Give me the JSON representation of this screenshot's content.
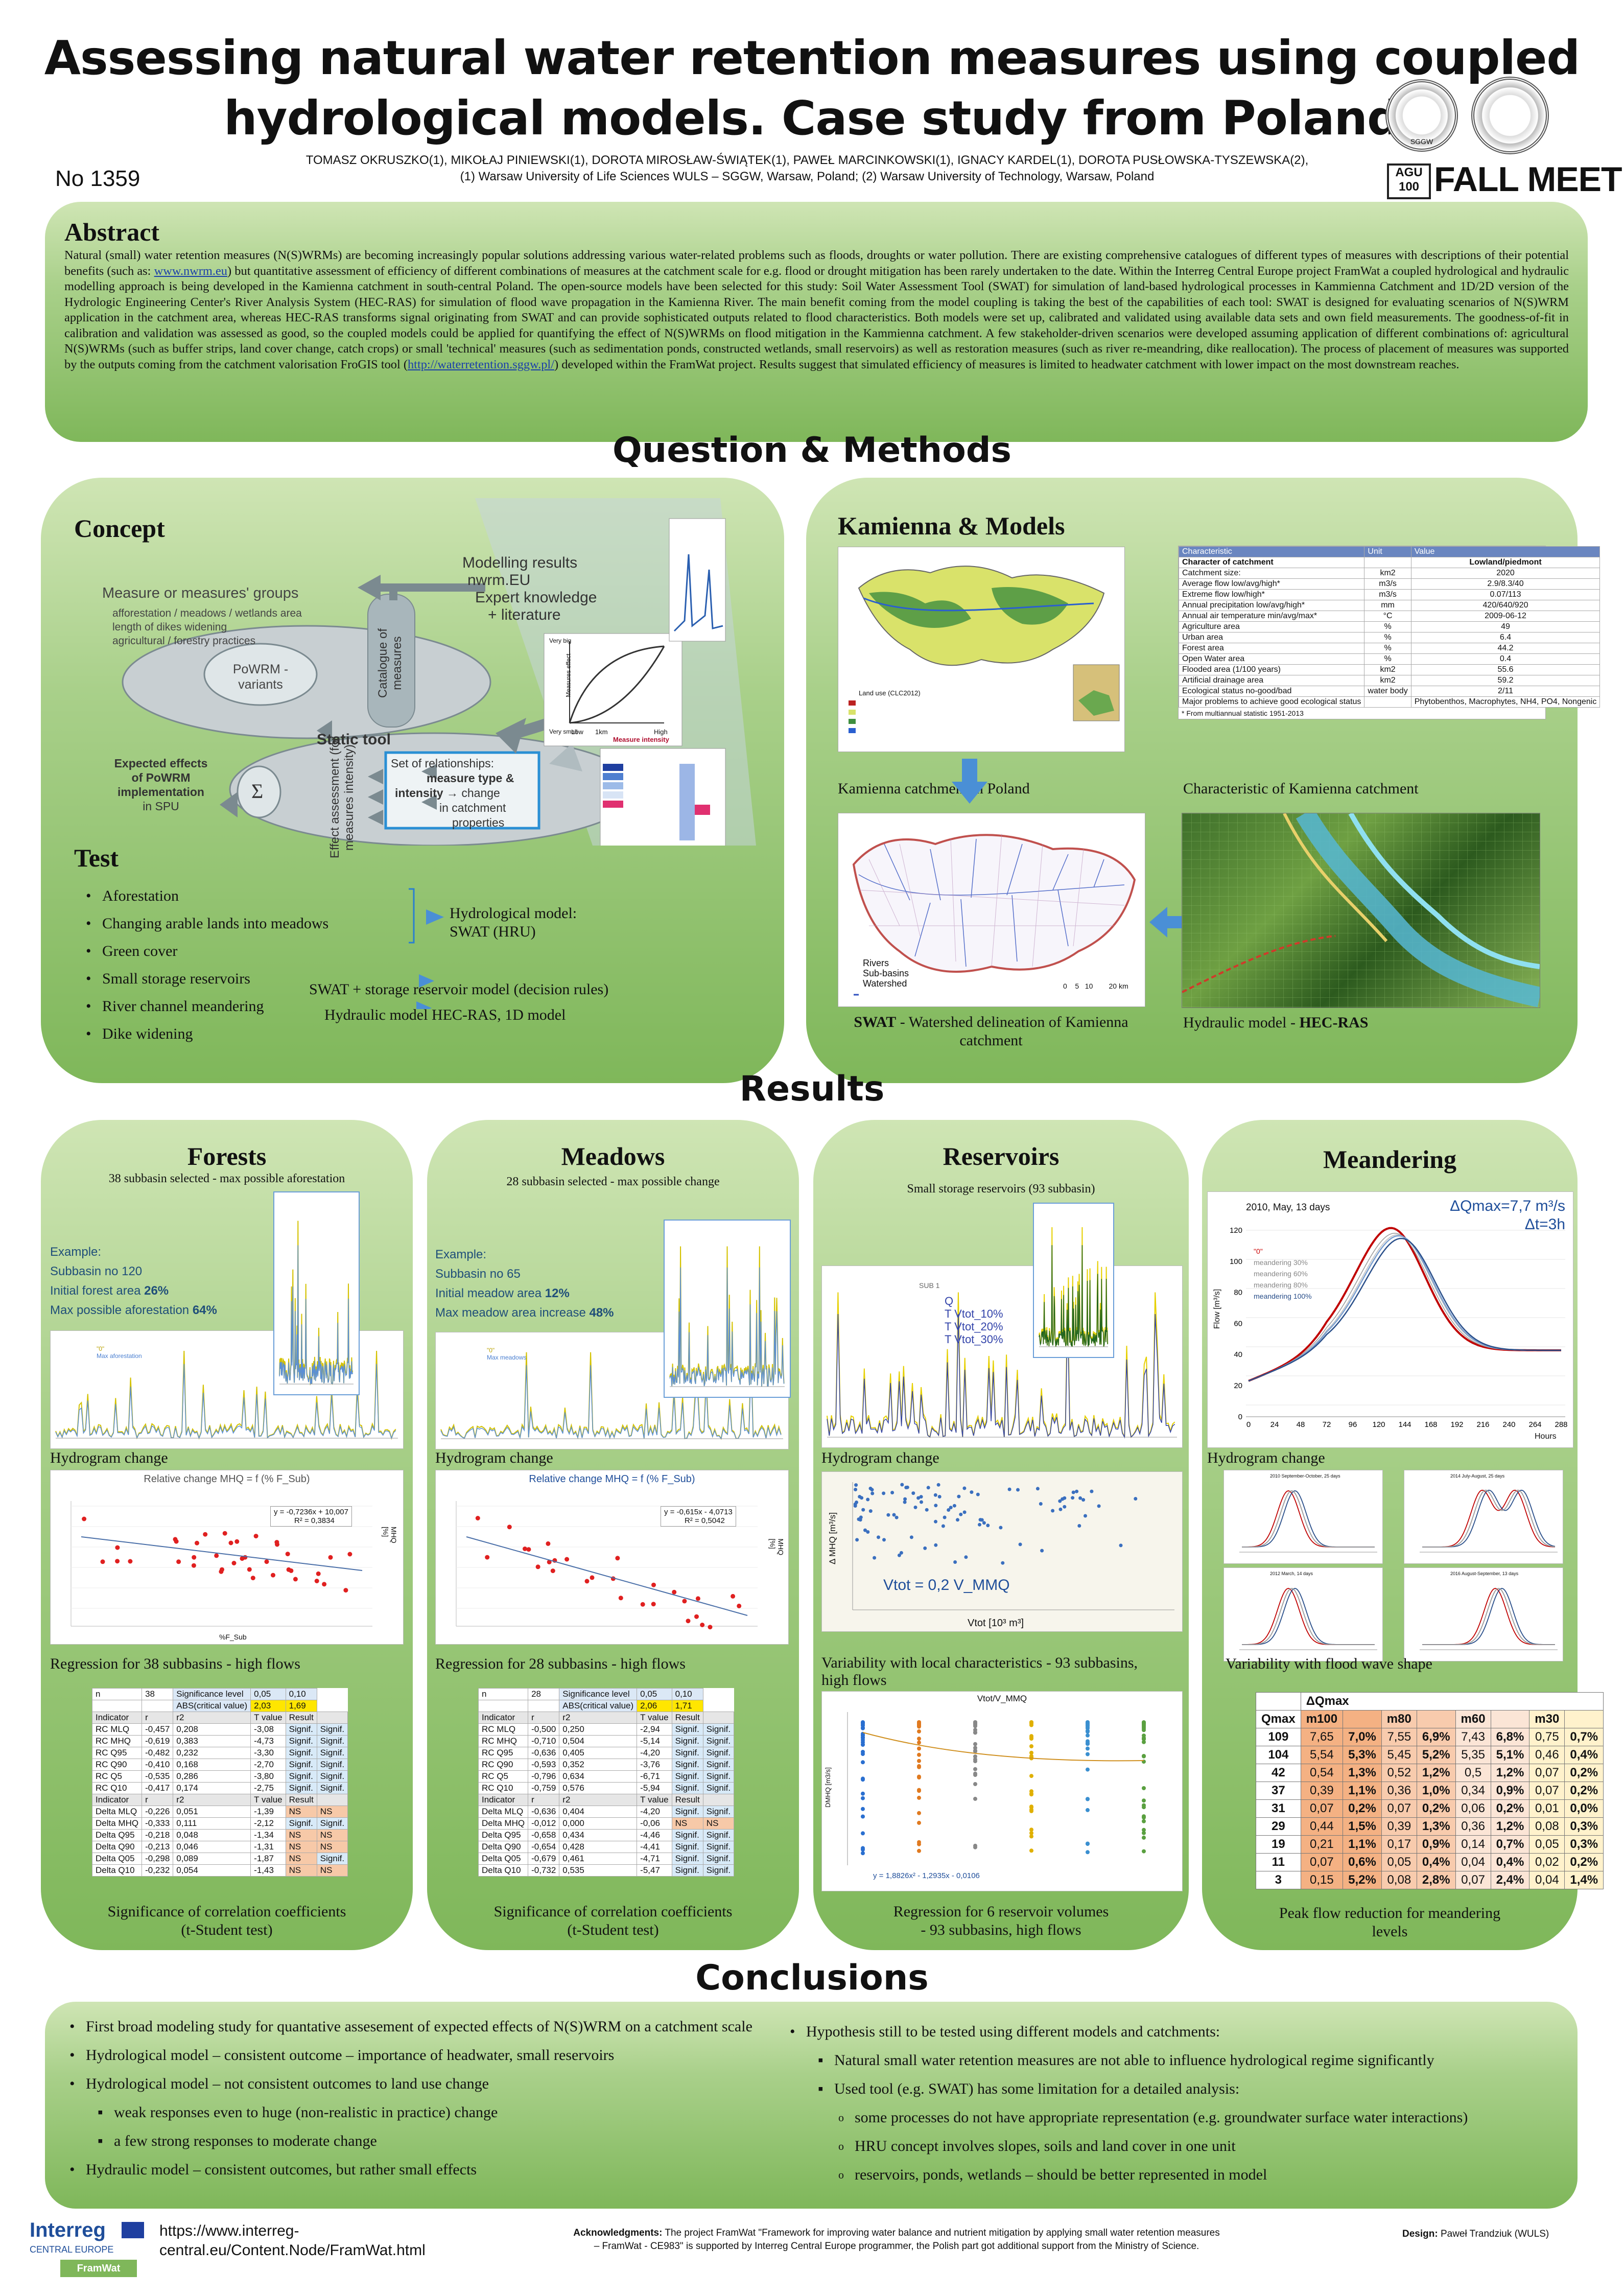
{
  "header": {
    "title_line1": "Assessing natural water retention measures using coupled",
    "title_line2": "hydrological models. Case study from Poland",
    "authors_line1": "TOMASZ OKRUSZKO(1), MIKOŁAJ PINIEWSKI(1), DOROTA MIROSŁAW-ŚWIĄTEK(1), PAWEŁ MARCINKOWSKI(1), IGNACY KARDEL(1), DOROTA PUSŁOWSKA-TYSZEWSKA(2),",
    "authors_line2": "(1) Warsaw University of Life Sciences WULS – SGGW, Warsaw, Poland; (2) Warsaw University of Technology, Warsaw, Poland",
    "poster_no": "No 1359",
    "seal_label": "SGGW",
    "agu_badge": "AGU 100",
    "fall_meeting": "FALL MEETING"
  },
  "abstract": {
    "heading": "Abstract",
    "text_a": "Natural (small) water retention measures (N(S)WRMs) are becoming increasingly popular solutions addressing various water-related problems such as floods, droughts or water pollution. There are existing comprehensive catalogues of different types of measures with descriptions of their potential benefits (such as: ",
    "link1": "www.nwrm.eu",
    "text_b": ") but quantitative assessment of efficiency of different combinations of measures at the catchment scale for e.g. flood or drought mitigation has been rarely undertaken to the date. Within the Interreg Central Europe project FramWat a coupled hydrological and hydraulic modelling approach is being developed in the Kamienna catchment in south-central Poland. The open-source models have been selected for this study: Soil Water Assessment Tool (SWAT) for simulation of land-based hydrological processes in Kammienna Catchment and 1D/2D version of the Hydrologic Engineering Center's River Analysis System (HEC-RAS) for simulation of flood wave propagation in the Kamienna River. The main benefit coming from the model coupling is taking the best of the capabilities of each tool: SWAT is designed for evaluating scenarios of N(S)WRM application in the catchment area, whereas HEC-RAS transforms signal originating from SWAT and can provide sophisticated outputs related to flood characteristics. Both models were set up, calibrated and validated using available data sets and own field measurements. The goodness-of-fit in calibration and validation was assessed as good, so the coupled models could be applied for quantifying the effect of N(S)WRMs on flood mitigation in the Kammienna catchment. A few stakeholder-driven scenarios were developed assuming application of different combinations of: agricultural N(S)WRMs (such as buffer strips, land cover change, catch crops) or small 'technical' measures (such as sedimentation ponds, constructed wetlands, small reservoirs) as well as restoration measures (such as river re-meandring, dike reallocation). The process of placement of measures was supported by the outputs coming from the catchment valorisation FroGIS tool (",
    "link2": "http://waterretention.sggw.pl/",
    "text_c": ") developed within the FramWat project. Results suggest that simulated efficiency of measures is limited to headwater catchment with lower impact on the most downstream reaches."
  },
  "sections": {
    "methods": "Question & Methods",
    "results": "Results",
    "conclusions": "Conclusions"
  },
  "concept": {
    "heading": "Concept",
    "modelling_results": "Modelling results",
    "nwrm": "nwrm.EU",
    "expert": "Expert knowledge",
    "literature": "+ literature",
    "measure_groups": "Measure or measures' groups",
    "mg1": "afforestation / meadows / wetlands area",
    "mg2": "length of dikes widening",
    "mg3": "agricultural / forestry practices",
    "powrm": "PoWRM -",
    "variants": "variants",
    "catalogue": "Catalogue of measures",
    "static_tool": "Static tool",
    "effect": "Effect assessment (for measures intensity)",
    "rel1": "Set of relationships:",
    "rel2": "measure type &",
    "rel3": "intensity",
    "rel4": "→ change",
    "rel5": "in catchment",
    "rel6": "properties",
    "expected1": "Expected effects",
    "expected2": "of PoWRM",
    "expected3": "implementation",
    "expected4": "in SPU",
    "sigma": "Σ",
    "measure_intensity": "Measure intensity",
    "very_big": "Very big",
    "very_small": "Very small",
    "low": "Low",
    "high": "High",
    "measures_effect": "Measures effect",
    "km_label": "1km"
  },
  "test": {
    "heading": "Test",
    "items": [
      "Aforestation",
      "Changing arable lands into meadows",
      "Green cover",
      "Small storage reservoirs",
      "River channel meandering",
      "Dike widening"
    ],
    "hydro1": "Hydrological model:",
    "hydro2": "SWAT (HRU)",
    "swat_res": "SWAT + storage reservoir model (decision rules)",
    "hecras": "Hydraulic model HEC-RAS, 1D model"
  },
  "kamienna": {
    "heading": "Kamienna & Models",
    "caption_map": "Kamienna catchment in Poland",
    "caption_char": "Characteristic of Kamienna catchment",
    "caption_swat_b": "SWAT",
    "caption_swat": " - Watershed delineation of Kamienna catchment",
    "caption_hec_a": "Hydraulic model - ",
    "caption_hec_b": "HEC-RAS",
    "legend_rivers": "Rivers",
    "legend_subbasins": "Sub-basins",
    "legend_watershed": "Watershed",
    "scale": "0    5   10        20 km",
    "table_head": [
      "Characteristic",
      "Unit",
      "Value"
    ],
    "table_sub": [
      "Character of catchment",
      "",
      "Lowland/piedmont"
    ],
    "table_rows": [
      [
        "Catchment size:",
        "km2",
        "2020"
      ],
      [
        "Average flow low/avg/high*",
        "m3/s",
        "2.9/8.3/40"
      ],
      [
        "Extreme flow low/high*",
        "m3/s",
        "0.07/113"
      ],
      [
        "Annual precipitation low/avg/high*",
        "mm",
        "420/640/920"
      ],
      [
        "Annual air temperature min/avg/max*",
        "°C",
        "2009-06-12"
      ],
      [
        "Agriculture area",
        "%",
        "49"
      ],
      [
        "Urban area",
        "%",
        "6.4"
      ],
      [
        "Forest area",
        "%",
        "44.2"
      ],
      [
        "Open Water area",
        "%",
        "0.4"
      ],
      [
        "Flooded area (1/100 years)",
        "km2",
        "55.6"
      ],
      [
        "Artificial drainage area",
        "km2",
        "59.2"
      ],
      [
        "Ecological status no-good/bad",
        "water body",
        "2/11"
      ],
      [
        "Major problems to achieve good ecological status",
        "",
        "Phytobenthos, Macrophytes, NH4, PO4, Nongenic"
      ]
    ],
    "table_note": "* From multiannual statistic 1951-2013",
    "map_legend_title": "Land use (CLC2012)"
  },
  "forests": {
    "heading": "Forests",
    "sub": "38 subbasin selected - max possible aforestation",
    "ex1": "Example:",
    "ex2": "Subbasin no 120",
    "ex3a": "Initial forest area ",
    "ex3b": "26%",
    "ex4a": "Max possible aforestation ",
    "ex4b": "64%",
    "hydrograph": "Hydrogram change",
    "reg_title": "Relative change MHQ = f (% F_Sub)",
    "reg_eq1": "y = -0,7236x + 10,007",
    "reg_eq2": "R² = 0,3834",
    "reg_x": "%F_Sub",
    "reg_y": "MHQ [%]",
    "regression": "Regression  for 38 subbasins  - high flows",
    "sig1": "Significance of correlation coefficients",
    "sig2": "(t-Student test)",
    "legend_0": "\"0\"",
    "legend_max": "Max aforestation",
    "dates": [
      "01.01.2009",
      "01.01.2010",
      "01.01.2011",
      "01.01.2012",
      "31.12.2012"
    ]
  },
  "meadows": {
    "heading": "Meadows",
    "sub": "28 subbasin selected - max possible change",
    "ex1": "Example:",
    "ex2": "Subbasin no 65",
    "ex3a": "Initial meadow area ",
    "ex3b": "12%",
    "ex4a": "Max meadow area increase ",
    "ex4b": "48%",
    "hydrograph": "Hydrogram change",
    "reg_title": "Relative change MHQ = f (% F_Sub)",
    "reg_eq1": "y = -0,615x - 4,0713",
    "reg_eq2": "R² = 0,5042",
    "reg_y": "MHQ [%]",
    "regression": "Regression  for 28 subbasins  - high flows",
    "sig1": "Significance of correlation coefficients",
    "sig2": "(t-Student test)",
    "legend_0": "\"0\"",
    "legend_max": "Max meadows"
  },
  "reservoirs": {
    "heading": "Reservoirs",
    "sub": "Small storage reservoirs (93 subbasin)",
    "sub1": "SUB 1",
    "legend": [
      "Q",
      "T Vtot_10%",
      "T Vtot_20%",
      "T Vtot_30%"
    ],
    "hydrograph": "Hydrogram change",
    "vtot_eq": "Vtot = 0,2 V_MMQ",
    "x_label": "Vtot [10³ m³]",
    "y_label": "Δ MHQ [m³/s]",
    "variability1": "Variability with local characteristics - 93 subbasins,",
    "variability2": "high flows",
    "box_title": "Vtot/V_MMQ",
    "box_eq": "y = 1,8826x² - 1,2935x - 0,0106",
    "box_y": "DMHQ [m3/s]",
    "cap1": "Regression for 6 reservoir volumes",
    "cap2": "- 93 subbasins, high flows"
  },
  "meandering": {
    "heading": "Meandering",
    "chart_title": "2010, May, 13 days",
    "dq": "ΔQmax=7,7 m³/s",
    "dt": "Δt=3h",
    "y_label": "Flow [m³/s]",
    "x_label": "Hours",
    "legend": [
      "\"0\"",
      "meandering 30%",
      "meandering 60%",
      "meandering 80%",
      "meandering 100%"
    ],
    "hydrograph": "Hydrogram change",
    "variability": "Variability with flood wave shape",
    "cap1": "Peak flow reduction for meandering",
    "cap2": "levels",
    "small_titles": [
      "2010 September-October, 25 days",
      "2014 July-August, 25 days",
      "2012 March, 14 days",
      "2016 August-September, 13 days"
    ],
    "table_head": [
      "Qmax",
      "m100",
      "",
      "m80",
      "",
      "m60",
      "",
      "m30",
      ""
    ],
    "table_dq": "ΔQmax",
    "table_rows": [
      [
        "109",
        "7,65",
        "7,0%",
        "7,55",
        "6,9%",
        "7,43",
        "6,8%",
        "0,75",
        "0,7%"
      ],
      [
        "104",
        "5,54",
        "5,3%",
        "5,45",
        "5,2%",
        "5,35",
        "5,1%",
        "0,46",
        "0,4%"
      ],
      [
        "42",
        "0,54",
        "1,3%",
        "0,52",
        "1,2%",
        "0,5",
        "1,2%",
        "0,07",
        "0,2%"
      ],
      [
        "37",
        "0,39",
        "1,1%",
        "0,36",
        "1,0%",
        "0,34",
        "0,9%",
        "0,07",
        "0,2%"
      ],
      [
        "31",
        "0,07",
        "0,2%",
        "0,07",
        "0,2%",
        "0,06",
        "0,2%",
        "0,01",
        "0,0%"
      ],
      [
        "29",
        "0,44",
        "1,5%",
        "0,39",
        "1,3%",
        "0,36",
        "1,2%",
        "0,08",
        "0,3%"
      ],
      [
        "19",
        "0,21",
        "1,1%",
        "0,17",
        "0,9%",
        "0,14",
        "0,7%",
        "0,05",
        "0,3%"
      ],
      [
        "11",
        "0,07",
        "0,6%",
        "0,05",
        "0,4%",
        "0,04",
        "0,4%",
        "0,02",
        "0,2%"
      ],
      [
        "3",
        "0,15",
        "5,2%",
        "0,08",
        "2,8%",
        "0,07",
        "2,4%",
        "0,04",
        "1,4%"
      ]
    ]
  },
  "sig_tables": {
    "forests": {
      "top": [
        "n",
        "38",
        "Significance level",
        "0,05",
        "0,10"
      ],
      "abs": [
        "",
        "",
        "ABS(critical value)",
        "2,03",
        "1,69"
      ],
      "head": [
        "Indicator",
        "r",
        "r2",
        "T value",
        "Result",
        ""
      ],
      "rows": [
        [
          "RC MLQ",
          "-0,457",
          "0,208",
          "-3,08",
          "Signif.",
          "Signif."
        ],
        [
          "RC MHQ",
          "-0,619",
          "0,383",
          "-4,73",
          "Signif.",
          "Signif."
        ],
        [
          "RC Q95",
          "-0,482",
          "0,232",
          "-3,30",
          "Signif.",
          "Signif."
        ],
        [
          "RC Q90",
          "-0,410",
          "0,168",
          "-2,70",
          "Signif.",
          "Signif."
        ],
        [
          "RC Q5",
          "-0,535",
          "0,286",
          "-3,80",
          "Signif.",
          "Signif."
        ],
        [
          "RC Q10",
          "-0,417",
          "0,174",
          "-2,75",
          "Signif.",
          "Signif."
        ]
      ],
      "head2": [
        "Indicator",
        "r",
        "r2",
        "T value",
        "Result",
        ""
      ],
      "rows2": [
        [
          "Delta MLQ",
          "-0,226",
          "0,051",
          "-1,39",
          "NS",
          "NS"
        ],
        [
          "Delta MHQ",
          "-0,333",
          "0,111",
          "-2,12",
          "Signif.",
          "Signif."
        ],
        [
          "Delta Q95",
          "-0,218",
          "0,048",
          "-1,34",
          "NS",
          "NS"
        ],
        [
          "Delta Q90",
          "-0,213",
          "0,046",
          "-1,31",
          "NS",
          "NS"
        ],
        [
          "Delta Q05",
          "-0,298",
          "0,089",
          "-1,87",
          "NS",
          "Signif."
        ],
        [
          "Delta Q10",
          "-0,232",
          "0,054",
          "-1,43",
          "NS",
          "NS"
        ]
      ]
    },
    "meadows": {
      "top": [
        "n",
        "28",
        "Significance level",
        "0,05",
        "0,10"
      ],
      "abs": [
        "",
        "",
        "ABS(critical value)",
        "2,06",
        "1,71"
      ],
      "head": [
        "Indicator",
        "r",
        "r2",
        "T value",
        "Result",
        ""
      ],
      "rows": [
        [
          "RC MLQ",
          "-0,500",
          "0,250",
          "-2,94",
          "Signif.",
          "Signif."
        ],
        [
          "RC MHQ",
          "-0,710",
          "0,504",
          "-5,14",
          "Signif.",
          "Signif."
        ],
        [
          "RC Q95",
          "-0,636",
          "0,405",
          "-4,20",
          "Signif.",
          "Signif."
        ],
        [
          "RC Q90",
          "-0,593",
          "0,352",
          "-3,76",
          "Signif.",
          "Signif."
        ],
        [
          "RC Q5",
          "-0,796",
          "0,634",
          "-6,71",
          "Signif.",
          "Signif."
        ],
        [
          "RC Q10",
          "-0,759",
          "0,576",
          "-5,94",
          "Signif.",
          "Signif."
        ]
      ],
      "head2": [
        "Indicator",
        "r",
        "r2",
        "T value",
        "Result",
        ""
      ],
      "rows2": [
        [
          "Delta MLQ",
          "-0,636",
          "0,404",
          "-4,20",
          "Signif.",
          "Signif."
        ],
        [
          "Delta MHQ",
          "-0,012",
          "0,000",
          "-0,06",
          "NS",
          "NS"
        ],
        [
          "Delta Q95",
          "-0,658",
          "0,434",
          "-4,46",
          "Signif.",
          "Signif."
        ],
        [
          "Delta Q90",
          "-0,654",
          "0,428",
          "-4,41",
          "Signif.",
          "Signif."
        ],
        [
          "Delta Q05",
          "-0,679",
          "0,461",
          "-4,71",
          "Signif.",
          "Signif."
        ],
        [
          "Delta Q10",
          "-0,732",
          "0,535",
          "-5,47",
          "Signif.",
          "Signif."
        ]
      ]
    }
  },
  "conclusions": {
    "left": [
      {
        "level": 1,
        "text": "First broad modeling study for quantative assesement of expected effects of N(S)WRM on a catchment scale"
      },
      {
        "level": 1,
        "text": "Hydrological model – consistent outcome – importance of headwater, small reservoirs"
      },
      {
        "level": 1,
        "text": "Hydrological model – not consistent outcomes to land use change"
      },
      {
        "level": 2,
        "text": "weak responses even to huge (non-realistic in practice) change"
      },
      {
        "level": 2,
        "text": "a few strong responses to moderate change"
      },
      {
        "level": 1,
        "text": "Hydraulic model – consistent outcomes, but rather small effects"
      }
    ],
    "right": [
      {
        "level": 1,
        "text": "Hypothesis still to be tested using different models and catchments:"
      },
      {
        "level": 2,
        "text": "Natural small water retention measures are not able to influence hydrological regime significantly"
      },
      {
        "level": 2,
        "text": "Used tool (e.g. SWAT) has some limitation for a detailed analysis:"
      },
      {
        "level": 3,
        "text": "some processes do not have appropriate representation (e.g. groundwater surface water interactions)"
      },
      {
        "level": 3,
        "text": "HRU concept involves slopes, soils and land cover in one unit"
      },
      {
        "level": 3,
        "text": "reservoirs, ponds, wetlands – should be better represented in model"
      }
    ]
  },
  "footer": {
    "interreg": "Interreg",
    "central_europe": "CENTRAL EUROPE",
    "framwat": "FramWat",
    "url1": "https://www.interreg-",
    "url2": "central.eu/Content.Node/FramWat.html",
    "ack_b": "Acknowledgments:",
    "ack1": " The project FramWat \"Framework for improving water balance and nutrient mitigation by applying small water retention measures",
    "ack2": "– FramWat - CE983\" is supported by Interreg Central Europe programmer, the Polish part got additional support from the Ministry of Science.",
    "design_b": "Design:",
    "design": " Paweł Trandziuk (WULS)"
  },
  "colors": {
    "panel_green": "#8fc46a",
    "heading_blue": "#1f4e79",
    "accent_yellow": "#ffd700"
  }
}
